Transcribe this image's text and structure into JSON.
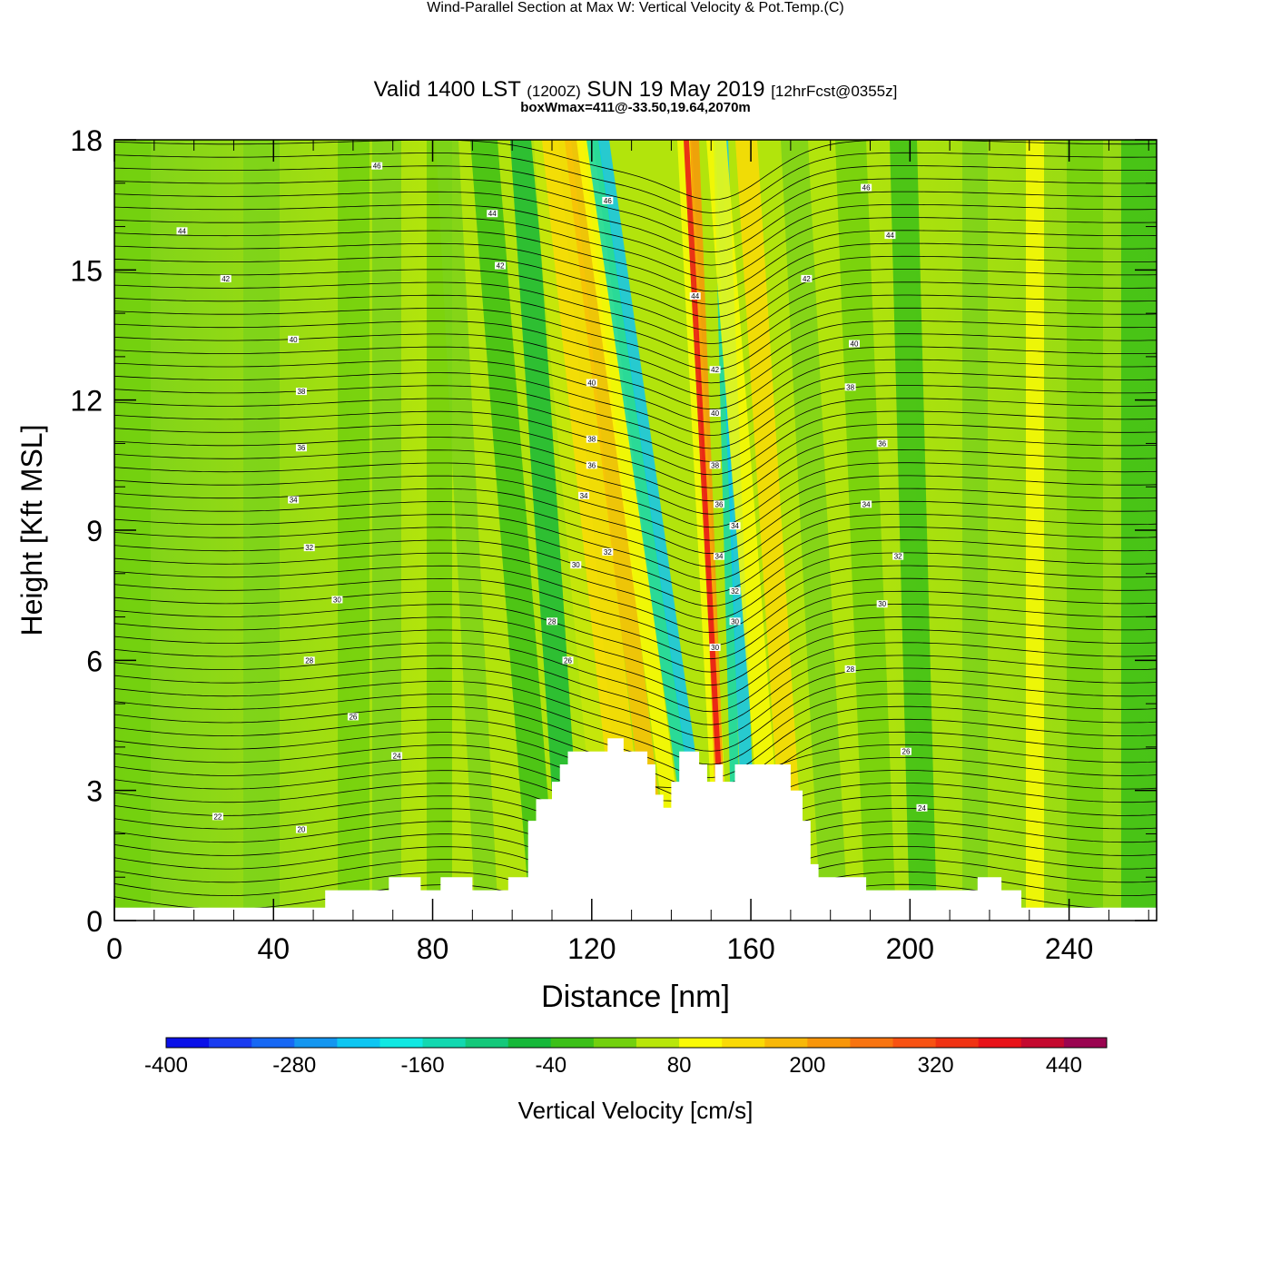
{
  "chart_data": {
    "type": "contour",
    "title": "Wind-Parallel Section at Max W: Vertical Velocity & Pot.Temp.",
    "title_mark": "(C)",
    "subtitle": {
      "valid_prefix": "Valid 1400 LST",
      "utc": "(1200Z)",
      "date": "SUN 19 May 2019",
      "forecast": "[12hrFcst@0355z]"
    },
    "annotation": "boxWmax=411@-33.50,19.64,2070m",
    "xlabel": "Distance [nm]",
    "ylabel": "Height [Kft MSL]",
    "xlim": [
      0,
      262
    ],
    "ylim": [
      0,
      18
    ],
    "xticks": [
      "0",
      "40",
      "80",
      "120",
      "160",
      "200",
      "240"
    ],
    "yticks": [
      "0",
      "3",
      "6",
      "9",
      "12",
      "15",
      "18"
    ],
    "terrain_kft": [
      [
        0,
        0.3
      ],
      [
        53,
        0.3
      ],
      [
        53,
        0.7
      ],
      [
        69,
        0.7
      ],
      [
        69,
        1.0
      ],
      [
        77,
        1.0
      ],
      [
        77,
        0.7
      ],
      [
        82,
        0.7
      ],
      [
        82,
        1.0
      ],
      [
        90,
        1.0
      ],
      [
        90,
        0.7
      ],
      [
        99,
        0.7
      ],
      [
        99,
        1.0
      ],
      [
        104,
        1.0
      ],
      [
        104,
        2.3
      ],
      [
        106,
        2.3
      ],
      [
        106,
        2.8
      ],
      [
        110,
        2.8
      ],
      [
        110,
        3.2
      ],
      [
        112,
        3.2
      ],
      [
        112,
        3.6
      ],
      [
        114,
        3.6
      ],
      [
        114,
        3.9
      ],
      [
        124,
        3.9
      ],
      [
        124,
        4.2
      ],
      [
        128,
        4.2
      ],
      [
        128,
        3.9
      ],
      [
        134,
        3.9
      ],
      [
        134,
        3.6
      ],
      [
        136,
        3.6
      ],
      [
        136,
        2.9
      ],
      [
        138,
        2.9
      ],
      [
        138,
        2.6
      ],
      [
        140,
        2.6
      ],
      [
        140,
        3.2
      ],
      [
        142,
        3.2
      ],
      [
        142,
        3.9
      ],
      [
        147,
        3.9
      ],
      [
        147,
        3.6
      ],
      [
        149,
        3.6
      ],
      [
        149,
        3.2
      ],
      [
        151,
        3.2
      ],
      [
        151,
        3.6
      ],
      [
        153,
        3.6
      ],
      [
        153,
        3.2
      ],
      [
        156,
        3.2
      ],
      [
        156,
        3.6
      ],
      [
        170,
        3.6
      ],
      [
        170,
        3.0
      ],
      [
        173,
        3.0
      ],
      [
        173,
        2.3
      ],
      [
        175,
        2.3
      ],
      [
        175,
        1.3
      ],
      [
        177,
        1.3
      ],
      [
        177,
        1.0
      ],
      [
        189,
        1.0
      ],
      [
        189,
        0.7
      ],
      [
        217,
        0.7
      ],
      [
        217,
        1.0
      ],
      [
        223,
        1.0
      ],
      [
        223,
        0.7
      ],
      [
        228,
        0.7
      ],
      [
        228,
        0.3
      ],
      [
        262,
        0.3
      ]
    ],
    "theta_labels": [
      {
        "x": 17,
        "y": 15.9,
        "text": "44"
      },
      {
        "x": 28,
        "y": 14.8,
        "text": "42"
      },
      {
        "x": 45,
        "y": 13.4,
        "text": "40"
      },
      {
        "x": 47,
        "y": 12.2,
        "text": "38"
      },
      {
        "x": 47,
        "y": 10.9,
        "text": "36"
      },
      {
        "x": 45,
        "y": 9.7,
        "text": "34"
      },
      {
        "x": 49,
        "y": 8.6,
        "text": "32"
      },
      {
        "x": 56,
        "y": 7.4,
        "text": "30"
      },
      {
        "x": 49,
        "y": 6.0,
        "text": "28"
      },
      {
        "x": 60,
        "y": 4.7,
        "text": "26"
      },
      {
        "x": 71,
        "y": 3.8,
        "text": "24"
      },
      {
        "x": 26,
        "y": 2.4,
        "text": "22"
      },
      {
        "x": 47,
        "y": 2.1,
        "text": "20"
      },
      {
        "x": 66,
        "y": 17.4,
        "text": "46"
      },
      {
        "x": 95,
        "y": 16.3,
        "text": "44"
      },
      {
        "x": 97,
        "y": 15.1,
        "text": "42"
      },
      {
        "x": 120,
        "y": 12.4,
        "text": "40"
      },
      {
        "x": 120,
        "y": 11.1,
        "text": "38"
      },
      {
        "x": 120,
        "y": 10.5,
        "text": "36"
      },
      {
        "x": 118,
        "y": 9.8,
        "text": "34"
      },
      {
        "x": 124,
        "y": 8.5,
        "text": "32"
      },
      {
        "x": 116,
        "y": 8.2,
        "text": "30"
      },
      {
        "x": 110,
        "y": 6.9,
        "text": "28"
      },
      {
        "x": 114,
        "y": 6.0,
        "text": "26"
      },
      {
        "x": 124,
        "y": 16.6,
        "text": "46"
      },
      {
        "x": 146,
        "y": 14.4,
        "text": "44"
      },
      {
        "x": 151,
        "y": 12.7,
        "text": "42"
      },
      {
        "x": 151,
        "y": 11.7,
        "text": "40"
      },
      {
        "x": 151,
        "y": 10.5,
        "text": "38"
      },
      {
        "x": 152,
        "y": 9.6,
        "text": "36"
      },
      {
        "x": 156,
        "y": 9.1,
        "text": "34"
      },
      {
        "x": 152,
        "y": 8.4,
        "text": "34"
      },
      {
        "x": 156,
        "y": 7.6,
        "text": "32"
      },
      {
        "x": 156,
        "y": 6.9,
        "text": "30"
      },
      {
        "x": 151,
        "y": 6.3,
        "text": "30"
      },
      {
        "x": 189,
        "y": 16.9,
        "text": "46"
      },
      {
        "x": 195,
        "y": 15.8,
        "text": "44"
      },
      {
        "x": 174,
        "y": 14.8,
        "text": "42"
      },
      {
        "x": 186,
        "y": 13.3,
        "text": "40"
      },
      {
        "x": 185,
        "y": 12.3,
        "text": "38"
      },
      {
        "x": 193,
        "y": 11.0,
        "text": "36"
      },
      {
        "x": 189,
        "y": 9.6,
        "text": "34"
      },
      {
        "x": 197,
        "y": 8.4,
        "text": "32"
      },
      {
        "x": 193,
        "y": 7.3,
        "text": "30"
      },
      {
        "x": 185,
        "y": 5.8,
        "text": "28"
      },
      {
        "x": 199,
        "y": 3.9,
        "text": "26"
      },
      {
        "x": 203,
        "y": 2.6,
        "text": "24"
      }
    ],
    "colorbar": {
      "label": "Vertical Velocity [cm/s]",
      "ticks": [
        "-400",
        "-280",
        "-160",
        "-40",
        "80",
        "200",
        "320",
        "440"
      ],
      "min": -400,
      "max": 480,
      "colors": [
        "#0a10e8",
        "#1a3cf0",
        "#1768f4",
        "#1496f0",
        "#0ec6f2",
        "#10e8e2",
        "#12d8b0",
        "#14c87a",
        "#16b83a",
        "#3cc018",
        "#72d00e",
        "#b8e60a",
        "#fafa06",
        "#fada06",
        "#f8b808",
        "#f8960a",
        "#f87410",
        "#f85212",
        "#f03212",
        "#e81218",
        "#c4082e",
        "#9a0450"
      ]
    }
  }
}
